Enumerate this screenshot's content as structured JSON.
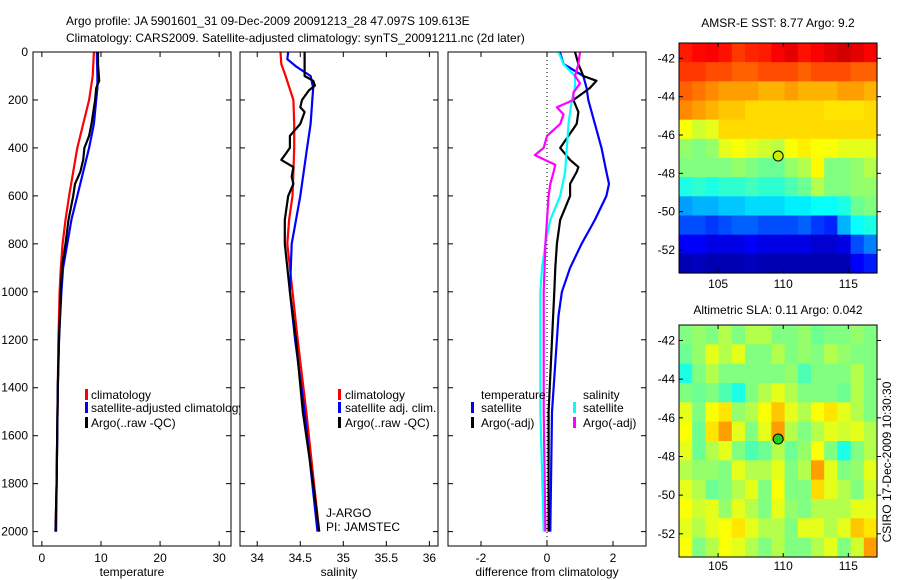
{
  "header": {
    "line1": "Argo profile: JA 5901601_31 09-Dec-2009 20091213_28 47.097S 109.613E",
    "line2": "Climatology: CARS2009. Satellite-adjusted climatology: synTS_20091211.nc (2d later)"
  },
  "credit": "CSIRO 17-Dec-2009 10:30:30",
  "chart_data": [
    {
      "type": "line",
      "id": "temperature",
      "xlabel": "temperature",
      "ylabel": "",
      "xlim": [
        -1.5,
        32
      ],
      "ylim": [
        0,
        2060
      ],
      "y_reversed": true,
      "xticks": [
        0,
        10,
        20,
        30
      ],
      "xtick_labels": [
        "0",
        "10",
        "20",
        "30"
      ],
      "yticks": [
        0,
        200,
        400,
        600,
        800,
        1000,
        1200,
        1400,
        1600,
        1800,
        2000
      ],
      "ytick_labels": [
        "0",
        "200",
        "400",
        "600",
        "800",
        "1000",
        "1200",
        "1400",
        "1600",
        "1800",
        "2000"
      ],
      "legend": {
        "placement": "lower-center",
        "entries": [
          "climatology",
          "satellite-adjusted climatology",
          "Argo(..raw -QC)"
        ]
      },
      "series": [
        {
          "name": "climatology",
          "color": "#ff0000",
          "depth": [
            0,
            100,
            200,
            300,
            400,
            500,
            600,
            700,
            800,
            900,
            1000,
            1200,
            1400,
            1600,
            1800,
            2000
          ],
          "values": [
            8.8,
            8.6,
            8.0,
            7.0,
            6.0,
            5.3,
            4.6,
            4.0,
            3.5,
            3.2,
            3.0,
            2.8,
            2.7,
            2.6,
            2.5,
            2.3
          ]
        },
        {
          "name": "satellite-adjusted climatology",
          "color": "#0000ff",
          "depth": [
            0,
            100,
            150,
            200,
            300,
            400,
            500,
            600,
            700,
            800,
            900,
            1000,
            1200,
            1400,
            1600,
            1800,
            2000
          ],
          "values": [
            9.3,
            9.4,
            9.4,
            9.2,
            8.8,
            8.0,
            7.0,
            6.0,
            5.0,
            4.3,
            3.6,
            3.3,
            2.9,
            2.7,
            2.6,
            2.5,
            2.4
          ]
        },
        {
          "name": "Argo(..raw -QC)",
          "color": "#000000",
          "depth": [
            0,
            50,
            120,
            150,
            200,
            300,
            350,
            400,
            450,
            500,
            550,
            600,
            700,
            800,
            900,
            1000,
            1200,
            1400,
            1600,
            1800,
            2000
          ],
          "values": [
            9.5,
            9.5,
            9.7,
            9.2,
            9.0,
            8.4,
            8.0,
            7.2,
            7.0,
            6.5,
            5.6,
            5.3,
            4.5,
            4.0,
            3.4,
            3.2,
            2.9,
            2.7,
            2.6,
            2.5,
            2.3
          ]
        }
      ]
    },
    {
      "type": "line",
      "id": "salinity",
      "xlabel": "salinity",
      "xlim": [
        33.8,
        36.1
      ],
      "ylim": [
        0,
        2060
      ],
      "y_reversed": true,
      "xticks": [
        34,
        34.5,
        35,
        35.5,
        36
      ],
      "xtick_labels": [
        "34",
        "34.5",
        "35",
        "35.5",
        "36"
      ],
      "yticks": [
        0,
        200,
        400,
        600,
        800,
        1000,
        1200,
        1400,
        1600,
        1800,
        2000
      ],
      "legend": {
        "placement": "lower-right",
        "entries": [
          "climatology",
          "satellite adj. clim.",
          "Argo(..raw -QC)"
        ]
      },
      "annotations": [
        "J-ARGO",
        "PI: JAMSTEC"
      ],
      "series": [
        {
          "name": "climatology",
          "color": "#ff0000",
          "depth": [
            0,
            50,
            100,
            200,
            300,
            400,
            500,
            600,
            700,
            800,
            1000,
            1200,
            1500,
            1800,
            2000
          ],
          "values": [
            34.27,
            34.28,
            34.33,
            34.42,
            34.43,
            34.43,
            34.42,
            34.41,
            34.37,
            34.35,
            34.41,
            34.47,
            34.57,
            34.66,
            34.72
          ]
        },
        {
          "name": "satellite adj. clim.",
          "color": "#0000ff",
          "depth": [
            0,
            30,
            60,
            100,
            150,
            200,
            300,
            400,
            500,
            600,
            700,
            800,
            1000,
            1200,
            1500,
            1800,
            2000
          ],
          "values": [
            34.36,
            34.35,
            34.45,
            34.62,
            34.65,
            34.64,
            34.62,
            34.58,
            34.54,
            34.5,
            34.45,
            34.4,
            34.38,
            34.44,
            34.55,
            34.64,
            34.7
          ]
        },
        {
          "name": "Argo(..raw -QC)",
          "color": "#000000",
          "depth": [
            0,
            100,
            120,
            140,
            160,
            200,
            230,
            250,
            300,
            350,
            400,
            430,
            450,
            480,
            520,
            550,
            600,
            700,
            800,
            1000,
            1200,
            1500,
            1800,
            2000
          ],
          "values": [
            34.55,
            34.55,
            34.65,
            34.67,
            34.6,
            34.52,
            34.5,
            34.55,
            34.5,
            34.38,
            34.38,
            34.32,
            34.28,
            34.42,
            34.4,
            34.42,
            34.36,
            34.32,
            34.32,
            34.38,
            34.45,
            34.53,
            34.65,
            34.72
          ]
        }
      ]
    },
    {
      "type": "line",
      "id": "difference",
      "xlabel": "difference from climatology",
      "xlim": [
        -3,
        3
      ],
      "ylim": [
        0,
        2060
      ],
      "y_reversed": true,
      "xticks": [
        -2,
        0,
        2
      ],
      "xtick_labels": [
        "-2",
        "0",
        "2"
      ],
      "yticks": [
        0,
        200,
        400,
        600,
        800,
        1000,
        1200,
        1400,
        1600,
        1800,
        2000
      ],
      "legend": {
        "placement": "lower-center",
        "groups": [
          {
            "title": "temperature",
            "entries": [
              "satellite",
              "Argo(-adj)"
            ]
          },
          {
            "title": "salinity",
            "entries": [
              "satellite",
              "Argo(-adj)"
            ]
          }
        ]
      },
      "series": [
        {
          "name": "temperature satellite",
          "color": "#0000ff",
          "depth": [
            0,
            50,
            100,
            150,
            200,
            300,
            400,
            500,
            550,
            600,
            700,
            800,
            900,
            1000,
            1100,
            1500,
            2000
          ],
          "values": [
            0.39,
            0.5,
            1.1,
            1.2,
            1.25,
            1.45,
            1.65,
            1.8,
            1.88,
            1.8,
            1.45,
            1.05,
            0.7,
            0.45,
            0.35,
            0.15,
            0.1
          ]
        },
        {
          "name": "temperature Argo(-adj)",
          "color": "#000000",
          "depth": [
            0,
            50,
            100,
            120,
            150,
            200,
            250,
            300,
            350,
            400,
            450,
            480,
            500,
            550,
            600,
            700,
            800,
            900,
            1000,
            1200,
            1500,
            2000
          ],
          "values": [
            0.85,
            0.95,
            1.1,
            1.5,
            1.3,
            0.8,
            0.95,
            0.9,
            0.65,
            0.4,
            0.7,
            0.95,
            0.9,
            0.7,
            0.7,
            0.4,
            0.3,
            0.25,
            0.22,
            0.15,
            0.05,
            0.05
          ]
        },
        {
          "name": "salinity satellite",
          "color": "#00ffff",
          "depth": [
            0,
            50,
            100,
            150,
            200,
            300,
            400,
            500,
            600,
            700,
            800,
            900,
            1000,
            1500,
            2000
          ],
          "values": [
            0.35,
            0.5,
            0.85,
            0.85,
            0.75,
            0.65,
            0.6,
            0.55,
            0.4,
            0.1,
            -0.05,
            -0.15,
            -0.2,
            -0.2,
            -0.1
          ]
        },
        {
          "name": "salinity Argo(-adj)",
          "color": "#ff00ff",
          "depth": [
            0,
            50,
            100,
            130,
            170,
            200,
            230,
            260,
            300,
            350,
            400,
            430,
            470,
            500,
            550,
            600,
            800,
            1000,
            1200,
            1500,
            2000
          ],
          "values": [
            1.0,
            0.95,
            0.85,
            1.0,
            0.8,
            0.8,
            0.3,
            0.5,
            0.4,
            0.0,
            -0.1,
            -0.37,
            0.25,
            0.2,
            0.1,
            0.05,
            -0.05,
            -0.1,
            -0.1,
            -0.1,
            -0.05
          ]
        }
      ]
    },
    {
      "type": "heatmap",
      "id": "sst-map",
      "title": "AMSR-E SST: 8.77 Argo: 9.2",
      "colormap": "jet",
      "values_scale": "normalized colormap fraction",
      "xlim": [
        102,
        117.2
      ],
      "ylim": [
        -53.2,
        -41.2
      ],
      "xticks": [
        105,
        110,
        115
      ],
      "xtick_labels": [
        "105",
        "110",
        "115"
      ],
      "yticks": [
        -42,
        -44,
        -46,
        -48,
        -50,
        -52
      ],
      "ytick_labels": [
        "-42",
        "-44",
        "-46",
        "-48",
        "-50",
        "-52"
      ],
      "marker": {
        "lon": 109.613,
        "lat": -47.097,
        "fill": "#c8f000"
      },
      "grid": [
        [
          0.85,
          0.87,
          0.88,
          0.86,
          0.82,
          0.84,
          0.85,
          0.88,
          0.9,
          0.86,
          0.88,
          0.9,
          0.92,
          0.9,
          0.88
        ],
        [
          0.82,
          0.82,
          0.8,
          0.8,
          0.78,
          0.78,
          0.8,
          0.8,
          0.8,
          0.78,
          0.8,
          0.8,
          0.8,
          0.78,
          0.78
        ],
        [
          0.78,
          0.76,
          0.74,
          0.72,
          0.72,
          0.72,
          0.7,
          0.7,
          0.72,
          0.7,
          0.7,
          0.7,
          0.72,
          0.72,
          0.7
        ],
        [
          0.74,
          0.72,
          0.7,
          0.68,
          0.68,
          0.66,
          0.66,
          0.66,
          0.66,
          0.66,
          0.66,
          0.65,
          0.65,
          0.65,
          0.66
        ],
        [
          0.62,
          0.58,
          0.6,
          0.66,
          0.66,
          0.66,
          0.66,
          0.66,
          0.66,
          0.66,
          0.66,
          0.66,
          0.66,
          0.66,
          0.66
        ],
        [
          0.52,
          0.5,
          0.52,
          0.6,
          0.62,
          0.6,
          0.58,
          0.56,
          0.62,
          0.64,
          0.62,
          0.62,
          0.6,
          0.6,
          0.6
        ],
        [
          0.5,
          0.5,
          0.5,
          0.5,
          0.52,
          0.5,
          0.48,
          0.48,
          0.52,
          0.55,
          0.63,
          0.5,
          0.5,
          0.52,
          0.55
        ],
        [
          0.4,
          0.42,
          0.4,
          0.42,
          0.42,
          0.44,
          0.42,
          0.42,
          0.45,
          0.48,
          0.55,
          0.5,
          0.5,
          0.52,
          0.52
        ],
        [
          0.28,
          0.3,
          0.3,
          0.32,
          0.32,
          0.34,
          0.34,
          0.34,
          0.36,
          0.36,
          0.38,
          0.38,
          0.4,
          0.48,
          0.5
        ],
        [
          0.2,
          0.2,
          0.18,
          0.2,
          0.22,
          0.22,
          0.2,
          0.2,
          0.2,
          0.22,
          0.18,
          0.16,
          0.3,
          0.38,
          0.4
        ],
        [
          0.12,
          0.12,
          0.1,
          0.1,
          0.1,
          0.12,
          0.1,
          0.1,
          0.1,
          0.1,
          0.08,
          0.08,
          0.1,
          0.2,
          0.25
        ],
        [
          0.05,
          0.06,
          0.05,
          0.05,
          0.05,
          0.06,
          0.05,
          0.05,
          0.05,
          0.05,
          0.05,
          0.05,
          0.05,
          0.12,
          0.15
        ]
      ]
    },
    {
      "type": "heatmap",
      "id": "sla-map",
      "title": "Altimetric SLA: 0.11 Argo: 0.042",
      "colormap": "jet",
      "values_scale": "normalized colormap fraction",
      "xlim": [
        102,
        117.2
      ],
      "ylim": [
        -53.2,
        -41.2
      ],
      "xticks": [
        105,
        110,
        115
      ],
      "xtick_labels": [
        "105",
        "110",
        "115"
      ],
      "yticks": [
        -42,
        -44,
        -46,
        -48,
        -50,
        -52
      ],
      "ytick_labels": [
        "-42",
        "-44",
        "-46",
        "-48",
        "-50",
        "-52"
      ],
      "marker": {
        "lon": 109.613,
        "lat": -47.097,
        "fill": "#22cc22"
      },
      "grid": [
        [
          0.5,
          0.52,
          0.5,
          0.55,
          0.5,
          0.55,
          0.55,
          0.5,
          0.5,
          0.52,
          0.48,
          0.5,
          0.5,
          0.52,
          0.5
        ],
        [
          0.48,
          0.52,
          0.6,
          0.55,
          0.6,
          0.5,
          0.5,
          0.55,
          0.5,
          0.52,
          0.5,
          0.55,
          0.52,
          0.5,
          0.5
        ],
        [
          0.4,
          0.5,
          0.55,
          0.5,
          0.5,
          0.5,
          0.5,
          0.5,
          0.52,
          0.45,
          0.5,
          0.5,
          0.5,
          0.55,
          0.5
        ],
        [
          0.5,
          0.48,
          0.5,
          0.45,
          0.4,
          0.5,
          0.55,
          0.6,
          0.55,
          0.5,
          0.5,
          0.5,
          0.48,
          0.55,
          0.5
        ],
        [
          0.6,
          0.5,
          0.62,
          0.65,
          0.52,
          0.55,
          0.62,
          0.68,
          0.6,
          0.55,
          0.62,
          0.65,
          0.6,
          0.55,
          0.5
        ],
        [
          0.62,
          0.48,
          0.65,
          0.72,
          0.6,
          0.5,
          0.6,
          0.72,
          0.55,
          0.5,
          0.55,
          0.6,
          0.58,
          0.6,
          0.55
        ],
        [
          0.6,
          0.48,
          0.55,
          0.6,
          0.5,
          0.45,
          0.48,
          0.55,
          0.48,
          0.52,
          0.62,
          0.5,
          0.4,
          0.5,
          0.55
        ],
        [
          0.55,
          0.52,
          0.52,
          0.5,
          0.6,
          0.55,
          0.55,
          0.6,
          0.5,
          0.55,
          0.72,
          0.6,
          0.5,
          0.52,
          0.6
        ],
        [
          0.6,
          0.55,
          0.48,
          0.5,
          0.55,
          0.6,
          0.5,
          0.62,
          0.5,
          0.5,
          0.66,
          0.6,
          0.55,
          0.5,
          0.58
        ],
        [
          0.62,
          0.58,
          0.6,
          0.52,
          0.6,
          0.55,
          0.5,
          0.6,
          0.52,
          0.5,
          0.55,
          0.55,
          0.55,
          0.6,
          0.6
        ],
        [
          0.6,
          0.55,
          0.6,
          0.62,
          0.65,
          0.6,
          0.55,
          0.55,
          0.5,
          0.6,
          0.6,
          0.55,
          0.6,
          0.68,
          0.65
        ],
        [
          0.62,
          0.5,
          0.55,
          0.62,
          0.6,
          0.55,
          0.5,
          0.55,
          0.5,
          0.5,
          0.55,
          0.6,
          0.5,
          0.58,
          0.72
        ]
      ]
    }
  ]
}
